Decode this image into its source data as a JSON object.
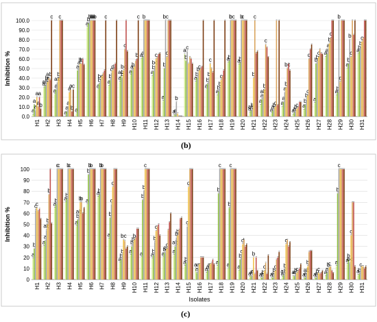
{
  "figure": {
    "panel_b_label": "(b)",
    "panel_c_label": "(c)"
  },
  "chart_data": [
    {
      "type": "bar",
      "panel": "(b)",
      "ylabel": "Inhibition %",
      "xlabel": "",
      "ylim": [
        0,
        100
      ],
      "yticks": [
        "0.0",
        "10.0",
        "20.0",
        "30.0",
        "40.0",
        "50.0",
        "60.0",
        "70.0",
        "80.0",
        "90.0",
        "100.0"
      ],
      "grid": true,
      "categories": [
        "H1",
        "H2",
        "H3",
        "H4",
        "H5",
        "H6",
        "H7",
        "H8",
        "H9",
        "H10",
        "H11",
        "H12",
        "H13",
        "H14",
        "H15",
        "H16",
        "H17",
        "H18",
        "H19",
        "H20",
        "H21",
        "H22",
        "H23",
        "H24",
        "H25",
        "H26",
        "H27",
        "H28",
        "H29",
        "H30",
        "H31"
      ],
      "colors": [
        "#d9ef9a",
        "#8bbd3c",
        "#a5a5a5",
        "#f0c14a",
        "#d9a35b",
        "#c0504d",
        "#7a3b10"
      ],
      "series": [
        {
          "values": [
            2,
            30,
            23,
            0,
            3,
            93,
            28,
            32,
            36,
            43,
            60,
            42,
            16,
            1,
            65,
            36,
            28,
            22,
            56,
            54,
            4,
            12,
            3,
            10,
            2,
            7,
            14,
            62,
            22,
            50,
            65
          ]
        },
        {
          "values": [
            12,
            32,
            28,
            5,
            48,
            97,
            34,
            38,
            42,
            48,
            62,
            47,
            50,
            2,
            58,
            40,
            34,
            26,
            58,
            56,
            6,
            18,
            6,
            15,
            4,
            12,
            55,
            65,
            25,
            55,
            68
          ]
        },
        {
          "values": [
            6,
            36,
            35,
            10,
            52,
            100,
            38,
            45,
            40,
            50,
            100,
            52,
            100,
            15,
            68,
            45,
            40,
            30,
            100,
            100,
            8,
            22,
            8,
            25,
            6,
            18,
            58,
            70,
            100,
            80,
            72
          ]
        },
        {
          "values": [
            20,
            36,
            40,
            25,
            55,
            100,
            42,
            48,
            48,
            52,
            100,
            60,
            62,
            3,
            55,
            48,
            55,
            38,
            100,
            100,
            40,
            28,
            10,
            30,
            8,
            22,
            62,
            76,
            36,
            62,
            78
          ]
        },
        {
          "values": [
            10,
            40,
            100,
            28,
            55,
            100,
            45,
            50,
            70,
            58,
            100,
            62,
            100,
            0,
            62,
            50,
            50,
            42,
            100,
            100,
            100,
            75,
            100,
            50,
            10,
            60,
            70,
            82,
            100,
            100,
            82
          ]
        },
        {
          "values": [
            20,
            38,
            100,
            5,
            60,
            100,
            48,
            55,
            100,
            60,
            100,
            65,
            100,
            0,
            60,
            52,
            46,
            48,
            100,
            100,
            66,
            72,
            12,
            55,
            15,
            70,
            66,
            100,
            100,
            85,
            100
          ]
        },
        {
          "values": [
            8,
            100,
            100,
            28,
            54,
            100,
            100,
            100,
            68,
            100,
            100,
            66,
            100,
            0,
            55,
            100,
            100,
            100,
            100,
            100,
            68,
            62,
            100,
            48,
            15,
            75,
            65,
            100,
            100,
            100,
            100
          ]
        }
      ],
      "annotations": [
        [
          "a",
          "a",
          "a",
          "a",
          "a",
          "a",
          "b"
        ],
        [
          "a",
          "ab",
          "b",
          "a",
          "ab",
          "",
          "c"
        ],
        [
          "a",
          "a",
          "ab",
          "b",
          "c",
          "",
          ""
        ],
        [
          "a",
          "a",
          "a",
          "a",
          "a",
          "b",
          "c"
        ],
        [
          "a",
          "a",
          "a",
          "b",
          "b",
          "",
          ""
        ],
        [
          "a",
          "b",
          "b",
          "b",
          "b",
          "b",
          "b"
        ],
        [
          "a",
          "b",
          "bc",
          "",
          "",
          "",
          "c"
        ],
        [
          "a",
          "b",
          "c",
          "d",
          "",
          "",
          ""
        ],
        [
          "a",
          "ab",
          "b",
          "bc",
          "c",
          "",
          ""
        ],
        [
          "a",
          "a",
          "b",
          "",
          "",
          "b",
          "c"
        ],
        [
          "a",
          "a",
          "b",
          "",
          "",
          "",
          ""
        ],
        [
          "a",
          "b",
          "bc",
          "c",
          "",
          "",
          ""
        ],
        [
          "a",
          "b",
          "bc",
          "c",
          "",
          "",
          ""
        ],
        [
          "a",
          "a",
          "b",
          "",
          "",
          "",
          ""
        ],
        [
          "a",
          "b",
          "c",
          "",
          "",
          "",
          ""
        ],
        [
          "a",
          "b",
          "b",
          "c",
          "",
          "",
          ""
        ],
        [
          "a",
          "b",
          "b",
          "c",
          "",
          "",
          ""
        ],
        [
          "a",
          "b",
          "b",
          "c",
          "",
          "",
          ""
        ],
        [
          "a",
          "b",
          "b",
          "bc",
          "",
          "",
          ""
        ],
        [
          "a",
          "b",
          "b",
          "c",
          "",
          "",
          ""
        ],
        [
          "a",
          "ab",
          "b",
          "b",
          "c",
          "",
          ""
        ],
        [
          "a",
          "a",
          "ab",
          "b",
          "c",
          "",
          ""
        ],
        [
          "a",
          "a",
          "b",
          "c",
          "",
          "",
          ""
        ],
        [
          "a",
          "a",
          "a",
          "b",
          "bc",
          "",
          ""
        ],
        [
          "a",
          "a",
          "b",
          "c",
          "",
          "",
          ""
        ],
        [
          "a",
          "b",
          "b",
          "c",
          "d",
          "",
          ""
        ],
        [
          "a",
          "b",
          "b",
          "c",
          "",
          "",
          ""
        ],
        [
          "a",
          "a",
          "a",
          "b",
          "c",
          "",
          ""
        ],
        [
          "a",
          "b",
          "b",
          "c",
          "",
          "",
          ""
        ],
        [
          "a",
          "b",
          "b",
          "c",
          "",
          "",
          ""
        ],
        [
          "a",
          "b",
          "b",
          "c",
          "",
          "",
          ""
        ]
      ]
    },
    {
      "type": "bar",
      "panel": "(c)",
      "ylabel": "Inhibition %",
      "xlabel": "Isolates",
      "ylim": [
        0,
        100
      ],
      "yticks": [
        "0",
        "10",
        "20",
        "30",
        "40",
        "50",
        "60",
        "70",
        "80",
        "90",
        "100"
      ],
      "grid": true,
      "categories": [
        "H1",
        "H2",
        "H3",
        "H4",
        "H5",
        "H6",
        "H7",
        "H8",
        "H9",
        "H10",
        "H11",
        "H12",
        "H13",
        "H14",
        "H15",
        "H16",
        "H17",
        "H18",
        "H19",
        "H20",
        "H21",
        "H22",
        "H23",
        "H24",
        "H25",
        "H26",
        "H27",
        "H28",
        "H29",
        "H30",
        "H31"
      ],
      "colors": [
        "#d9ef9a",
        "#8bbd3c",
        "#a5a5a5",
        "#f0c14a",
        "#d9a35b",
        "#c0504d",
        "#7a3b10"
      ],
      "series": [
        {
          "values": [
            19,
            30,
            65,
            70,
            48,
            68,
            75,
            37,
            15,
            22,
            20,
            19,
            20,
            22,
            12,
            10,
            6,
            12,
            10,
            8,
            2,
            1,
            1,
            2,
            3,
            1,
            1,
            3,
            12,
            14,
            4
          ]
        },
        {
          "values": [
            28,
            35,
            68,
            73,
            54,
            95,
            77,
            56,
            18,
            30,
            72,
            22,
            24,
            30,
            15,
            6,
            8,
            78,
            65,
            18,
            3,
            2,
            2,
            4,
            3,
            2,
            2,
            6,
            78,
            18,
            5
          ]
        },
        {
          "values": [
            63,
            45,
            100,
            100,
            58,
            100,
            100,
            68,
            22,
            33,
            80,
            34,
            25,
            38,
            48,
            10,
            10,
            100,
            100,
            22,
            4,
            3,
            5,
            9,
            5,
            5,
            4,
            10,
            100,
            15,
            10
          ]
        },
        {
          "values": [
            65,
            50,
            100,
            100,
            70,
            100,
            100,
            84,
            36,
            36,
            100,
            44,
            28,
            40,
            84,
            14,
            14,
            100,
            100,
            32,
            20,
            8,
            8,
            32,
            6,
            12,
            6,
            11,
            100,
            40,
            12
          ]
        },
        {
          "values": [
            62,
            77,
            100,
            100,
            70,
            100,
            100,
            100,
            35,
            38,
            100,
            48,
            45,
            45,
            100,
            20,
            15,
            100,
            100,
            36,
            5,
            15,
            18,
            36,
            8,
            25,
            5,
            12,
            100,
            70,
            12
          ]
        },
        {
          "values": [
            64,
            100,
            100,
            100,
            60,
            100,
            100,
            100,
            28,
            46,
            100,
            50,
            52,
            55,
            100,
            20,
            18,
            100,
            100,
            30,
            20,
            5,
            20,
            30,
            10,
            26,
            6,
            8,
            100,
            70,
            10
          ]
        },
        {
          "values": [
            55,
            51,
            100,
            100,
            65,
            100,
            100,
            100,
            30,
            46,
            100,
            40,
            60,
            56,
            100,
            20,
            14,
            100,
            100,
            32,
            8,
            22,
            25,
            34,
            14,
            26,
            8,
            6,
            100,
            12,
            12
          ]
        }
      ],
      "annotations": [
        [
          "a",
          "b",
          "c",
          "c",
          "",
          "",
          ""
        ],
        [
          "a",
          "a",
          "ab",
          "b",
          "b",
          "",
          ""
        ],
        [
          "a",
          "b",
          "c",
          "c",
          "",
          "",
          ""
        ],
        [
          "a",
          "b",
          "b",
          "c",
          "",
          "",
          ""
        ],
        [
          "a",
          "b",
          "ab",
          "b",
          "b",
          "",
          ""
        ],
        [
          "a",
          "b",
          "b",
          "b",
          "",
          "",
          ""
        ],
        [
          "a",
          "b",
          "b",
          "b",
          "",
          "",
          ""
        ],
        [
          "a",
          "b",
          "c",
          "c",
          "",
          "",
          ""
        ],
        [
          "a",
          "b",
          "b",
          "bc",
          "",
          "",
          ""
        ],
        [
          "a",
          "b",
          "b",
          "b",
          "",
          "",
          ""
        ],
        [
          "a",
          "b",
          "b",
          "c",
          "",
          "",
          ""
        ],
        [
          "a",
          "b",
          "b",
          "c",
          "",
          "",
          ""
        ],
        [
          "a",
          "b",
          "b",
          "c",
          "",
          "",
          ""
        ],
        [
          "a",
          "ab",
          "b",
          "b",
          "",
          "",
          ""
        ],
        [
          "a",
          "b",
          "c",
          "d",
          "",
          "",
          ""
        ],
        [
          "a",
          "a",
          "a",
          "",
          "",
          "",
          ""
        ],
        [
          "a",
          "a",
          "a",
          "",
          "",
          "",
          ""
        ],
        [
          "a",
          "b",
          "c",
          "",
          "",
          "",
          ""
        ],
        [
          "a",
          "b",
          "c",
          "",
          "",
          "",
          ""
        ],
        [
          "a",
          "b",
          "c",
          "d",
          "",
          "",
          ""
        ],
        [
          "a",
          "a",
          "a",
          "b",
          "",
          "",
          ""
        ],
        [
          "a",
          "a",
          "b",
          "c",
          "",
          "",
          ""
        ],
        [
          "a",
          "a",
          "b",
          "c",
          "",
          "",
          ""
        ],
        [
          "a",
          "ab",
          "b",
          "c",
          "",
          "",
          ""
        ],
        [
          "a",
          "a",
          "b",
          "c",
          "",
          "",
          ""
        ],
        [
          "a",
          "a",
          "ab",
          "b",
          "",
          "",
          ""
        ],
        [
          "a",
          "a",
          "b",
          "c",
          "",
          "",
          ""
        ],
        [
          "a",
          "a",
          "b",
          "c",
          "",
          "",
          ""
        ],
        [
          "a",
          "b",
          "c",
          "",
          "",
          "",
          ""
        ],
        [
          "a",
          "b",
          "bc",
          "c",
          "",
          "",
          ""
        ],
        [
          "a",
          "b",
          "c",
          "",
          "",
          "",
          ""
        ]
      ]
    }
  ]
}
